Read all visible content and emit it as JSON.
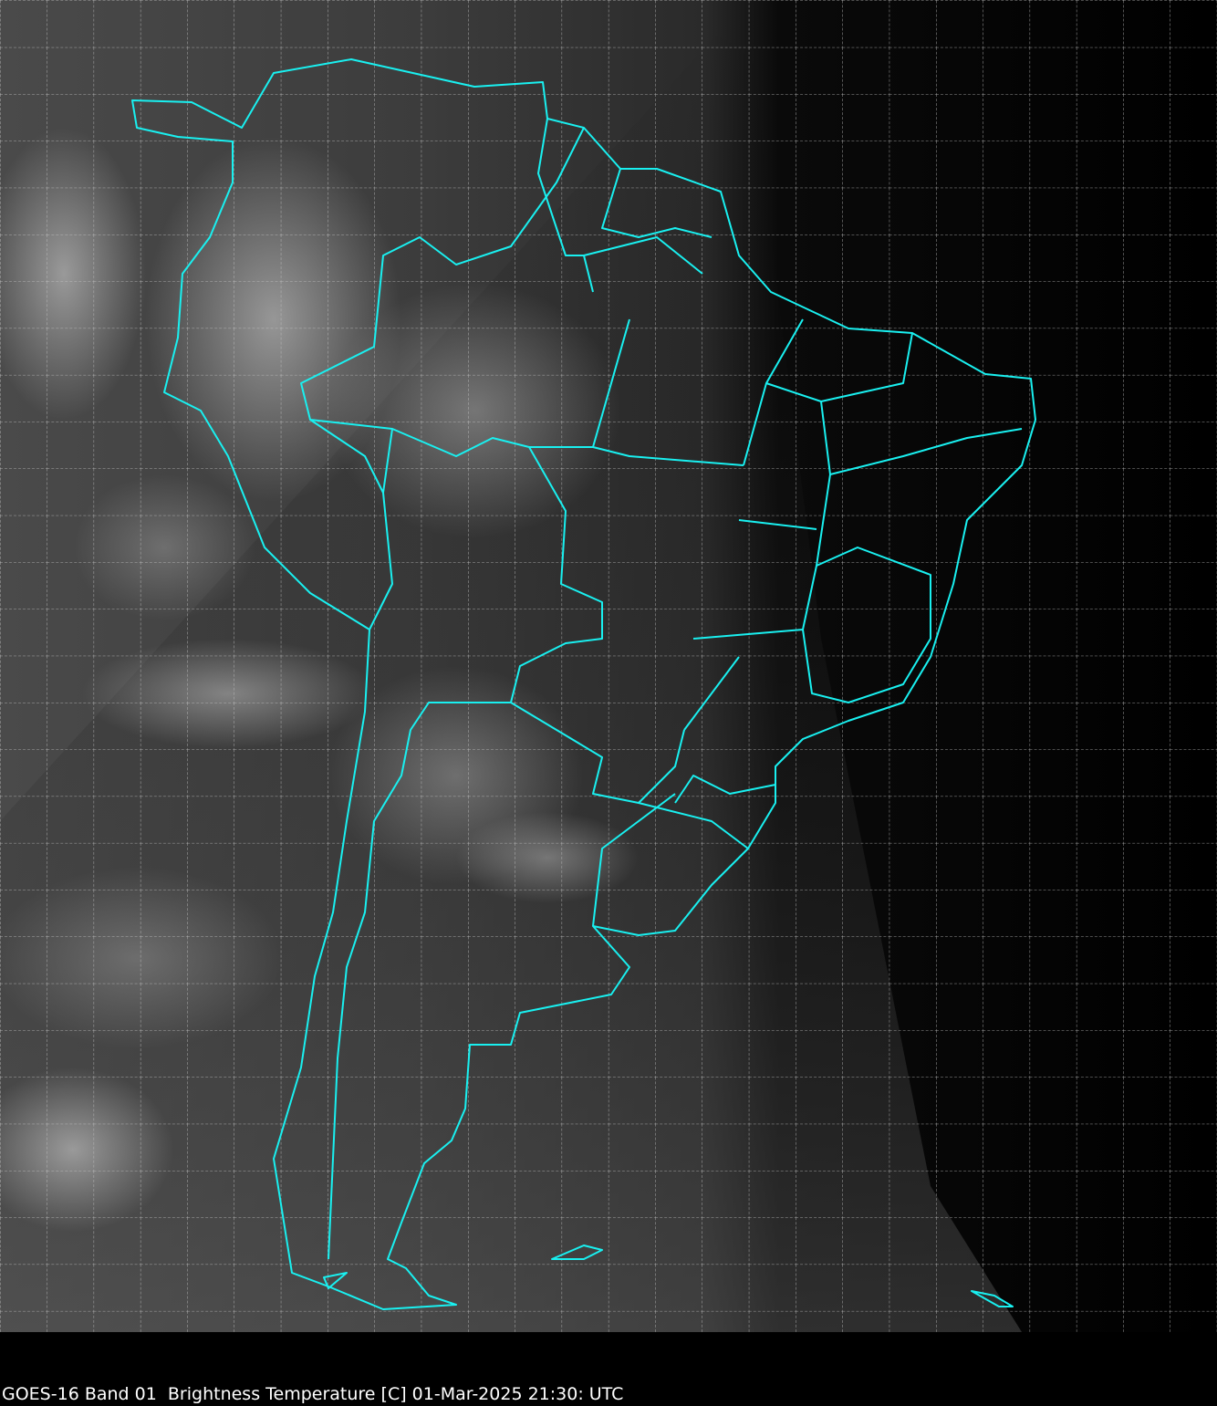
{
  "caption": "GOES-16 Band 01  Brightness Temperature [C] 01-Mar-2025 21:30: UTC"
}
